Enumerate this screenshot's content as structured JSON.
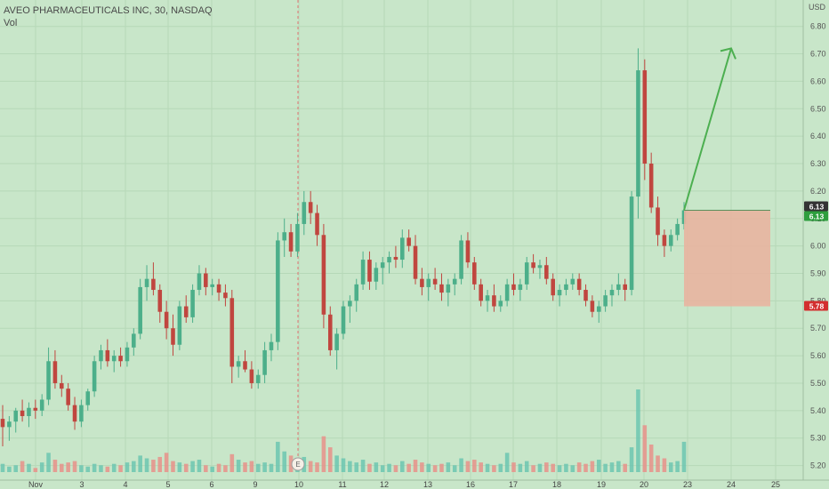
{
  "header": {
    "title": "AVEO PHARMACEUTICALS INC, 30, NASDAQ",
    "volume_label": "Vol"
  },
  "colors": {
    "background": "#c8e6c9",
    "up": "#4caf8a",
    "down": "#c0463f",
    "volume_up": "#6cc5b0",
    "volume_down": "#e8908a",
    "arrow": "#4caf50",
    "stop_zone": "#e8b4a0",
    "grid": "#b6d8b8",
    "event_line": "#e57373"
  },
  "chart_data": {
    "type": "candlestick",
    "y_axis": {
      "unit": "USD",
      "ticks": [
        "6.80",
        "6.70",
        "6.60",
        "6.50",
        "6.40",
        "6.30",
        "6.20",
        "6.10",
        "6.00",
        "5.90",
        "5.80",
        "5.70",
        "5.60",
        "5.50",
        "5.40",
        "5.30",
        "5.20"
      ],
      "range": [
        5.15,
        6.88
      ]
    },
    "x_axis": {
      "ticks": [
        "Nov",
        "3",
        "4",
        "5",
        "6",
        "9",
        "10",
        "11",
        "12",
        "13",
        "16",
        "17",
        "18",
        "19",
        "20",
        "23",
        "24",
        "25"
      ]
    },
    "price_labels": [
      {
        "value": "6.13",
        "color": "#333333"
      },
      {
        "value": "6.13",
        "color": "#2e9e3e"
      },
      {
        "value": "5.78",
        "color": "#d32f2f"
      }
    ],
    "event_marker": {
      "label": "E",
      "x_tick": "10"
    },
    "trade_setup": {
      "entry": 6.13,
      "stop": 5.78,
      "target_arrow_to": 6.72
    },
    "ohlc_series": [
      [
        5.37,
        5.42,
        5.27,
        5.34
      ],
      [
        5.34,
        5.38,
        5.29,
        5.36
      ],
      [
        5.36,
        5.41,
        5.32,
        5.4
      ],
      [
        5.4,
        5.44,
        5.36,
        5.38
      ],
      [
        5.38,
        5.43,
        5.34,
        5.41
      ],
      [
        5.41,
        5.44,
        5.37,
        5.4
      ],
      [
        5.4,
        5.46,
        5.38,
        5.44
      ],
      [
        5.44,
        5.63,
        5.42,
        5.58
      ],
      [
        5.58,
        5.62,
        5.48,
        5.5
      ],
      [
        5.5,
        5.53,
        5.45,
        5.48
      ],
      [
        5.48,
        5.5,
        5.4,
        5.42
      ],
      [
        5.42,
        5.45,
        5.33,
        5.36
      ],
      [
        5.36,
        5.44,
        5.34,
        5.42
      ],
      [
        5.42,
        5.48,
        5.4,
        5.47
      ],
      [
        5.47,
        5.6,
        5.45,
        5.58
      ],
      [
        5.58,
        5.64,
        5.55,
        5.62
      ],
      [
        5.62,
        5.66,
        5.56,
        5.58
      ],
      [
        5.58,
        5.62,
        5.54,
        5.6
      ],
      [
        5.6,
        5.63,
        5.56,
        5.58
      ],
      [
        5.58,
        5.65,
        5.56,
        5.63
      ],
      [
        5.63,
        5.7,
        5.6,
        5.68
      ],
      [
        5.68,
        5.88,
        5.66,
        5.85
      ],
      [
        5.85,
        5.93,
        5.8,
        5.88
      ],
      [
        5.88,
        5.94,
        5.82,
        5.84
      ],
      [
        5.84,
        5.86,
        5.72,
        5.76
      ],
      [
        5.76,
        5.8,
        5.66,
        5.7
      ],
      [
        5.7,
        5.75,
        5.6,
        5.64
      ],
      [
        5.64,
        5.8,
        5.62,
        5.78
      ],
      [
        5.78,
        5.82,
        5.72,
        5.74
      ],
      [
        5.74,
        5.86,
        5.72,
        5.84
      ],
      [
        5.84,
        5.93,
        5.82,
        5.9
      ],
      [
        5.9,
        5.92,
        5.82,
        5.85
      ],
      [
        5.85,
        5.88,
        5.82,
        5.86
      ],
      [
        5.86,
        5.88,
        5.8,
        5.83
      ],
      [
        5.83,
        5.86,
        5.78,
        5.81
      ],
      [
        5.81,
        5.84,
        5.5,
        5.56
      ],
      [
        5.56,
        5.6,
        5.52,
        5.58
      ],
      [
        5.58,
        5.62,
        5.54,
        5.55
      ],
      [
        5.55,
        5.58,
        5.48,
        5.5
      ],
      [
        5.5,
        5.55,
        5.48,
        5.53
      ],
      [
        5.53,
        5.65,
        5.5,
        5.62
      ],
      [
        5.62,
        5.68,
        5.58,
        5.65
      ],
      [
        5.65,
        6.05,
        5.62,
        6.02
      ],
      [
        6.02,
        6.1,
        5.96,
        6.05
      ],
      [
        6.05,
        6.08,
        5.96,
        5.98
      ],
      [
        5.98,
        6.12,
        5.96,
        6.08
      ],
      [
        6.08,
        6.2,
        6.04,
        6.16
      ],
      [
        6.16,
        6.2,
        6.08,
        6.12
      ],
      [
        6.12,
        6.15,
        6.0,
        6.04
      ],
      [
        6.04,
        6.08,
        5.7,
        5.75
      ],
      [
        5.75,
        5.78,
        5.6,
        5.62
      ],
      [
        5.62,
        5.7,
        5.55,
        5.68
      ],
      [
        5.68,
        5.8,
        5.66,
        5.78
      ],
      [
        5.78,
        5.82,
        5.72,
        5.8
      ],
      [
        5.8,
        5.88,
        5.76,
        5.86
      ],
      [
        5.86,
        5.98,
        5.84,
        5.95
      ],
      [
        5.95,
        5.98,
        5.84,
        5.87
      ],
      [
        5.87,
        5.94,
        5.84,
        5.92
      ],
      [
        5.92,
        5.96,
        5.86,
        5.94
      ],
      [
        5.94,
        5.98,
        5.9,
        5.96
      ],
      [
        5.96,
        6.0,
        5.92,
        5.95
      ],
      [
        5.95,
        6.06,
        5.92,
        6.03
      ],
      [
        6.03,
        6.06,
        5.98,
        6.0
      ],
      [
        6.0,
        6.04,
        5.86,
        5.88
      ],
      [
        5.88,
        5.92,
        5.82,
        5.85
      ],
      [
        5.85,
        5.9,
        5.8,
        5.88
      ],
      [
        5.88,
        5.92,
        5.84,
        5.86
      ],
      [
        5.86,
        5.9,
        5.8,
        5.83
      ],
      [
        5.83,
        5.88,
        5.78,
        5.86
      ],
      [
        5.86,
        5.9,
        5.82,
        5.88
      ],
      [
        5.88,
        6.04,
        5.86,
        6.02
      ],
      [
        6.02,
        6.05,
        5.92,
        5.94
      ],
      [
        5.94,
        5.96,
        5.84,
        5.86
      ],
      [
        5.86,
        5.88,
        5.78,
        5.8
      ],
      [
        5.8,
        5.84,
        5.76,
        5.82
      ],
      [
        5.82,
        5.86,
        5.76,
        5.78
      ],
      [
        5.78,
        5.82,
        5.76,
        5.8
      ],
      [
        5.8,
        5.88,
        5.78,
        5.86
      ],
      [
        5.86,
        5.9,
        5.82,
        5.84
      ],
      [
        5.84,
        5.88,
        5.8,
        5.86
      ],
      [
        5.86,
        5.96,
        5.84,
        5.94
      ],
      [
        5.94,
        5.97,
        5.9,
        5.92
      ],
      [
        5.92,
        5.95,
        5.88,
        5.93
      ],
      [
        5.93,
        5.96,
        5.86,
        5.88
      ],
      [
        5.88,
        5.9,
        5.8,
        5.82
      ],
      [
        5.82,
        5.86,
        5.78,
        5.84
      ],
      [
        5.84,
        5.88,
        5.82,
        5.86
      ],
      [
        5.86,
        5.9,
        5.84,
        5.88
      ],
      [
        5.88,
        5.9,
        5.82,
        5.84
      ],
      [
        5.84,
        5.86,
        5.78,
        5.8
      ],
      [
        5.8,
        5.82,
        5.74,
        5.76
      ],
      [
        5.76,
        5.8,
        5.72,
        5.78
      ],
      [
        5.78,
        5.84,
        5.76,
        5.82
      ],
      [
        5.82,
        5.86,
        5.78,
        5.84
      ],
      [
        5.84,
        5.9,
        5.82,
        5.86
      ],
      [
        5.86,
        5.88,
        5.8,
        5.84
      ],
      [
        5.84,
        6.2,
        5.82,
        6.18
      ],
      [
        6.18,
        6.72,
        6.1,
        6.64
      ],
      [
        6.64,
        6.68,
        6.24,
        6.3
      ],
      [
        6.3,
        6.34,
        6.12,
        6.14
      ],
      [
        6.14,
        6.18,
        6.0,
        6.04
      ],
      [
        6.04,
        6.06,
        5.96,
        6.0
      ],
      [
        6.0,
        6.06,
        5.98,
        6.04
      ],
      [
        6.04,
        6.1,
        6.02,
        6.08
      ],
      [
        6.08,
        6.16,
        6.06,
        6.13
      ]
    ],
    "volume": [
      [
        6,
        1
      ],
      [
        4,
        1
      ],
      [
        5,
        1
      ],
      [
        8,
        0
      ],
      [
        6,
        1
      ],
      [
        3,
        0
      ],
      [
        7,
        1
      ],
      [
        14,
        1
      ],
      [
        9,
        0
      ],
      [
        6,
        0
      ],
      [
        7,
        0
      ],
      [
        8,
        0
      ],
      [
        5,
        1
      ],
      [
        4,
        1
      ],
      [
        6,
        1
      ],
      [
        5,
        1
      ],
      [
        4,
        0
      ],
      [
        6,
        1
      ],
      [
        5,
        0
      ],
      [
        7,
        1
      ],
      [
        8,
        1
      ],
      [
        12,
        1
      ],
      [
        10,
        1
      ],
      [
        9,
        0
      ],
      [
        11,
        0
      ],
      [
        14,
        0
      ],
      [
        8,
        0
      ],
      [
        7,
        1
      ],
      [
        6,
        0
      ],
      [
        8,
        1
      ],
      [
        9,
        1
      ],
      [
        5,
        0
      ],
      [
        4,
        1
      ],
      [
        6,
        0
      ],
      [
        5,
        0
      ],
      [
        13,
        0
      ],
      [
        9,
        1
      ],
      [
        7,
        0
      ],
      [
        8,
        0
      ],
      [
        6,
        1
      ],
      [
        7,
        1
      ],
      [
        6,
        1
      ],
      [
        22,
        1
      ],
      [
        15,
        1
      ],
      [
        12,
        0
      ],
      [
        10,
        1
      ],
      [
        11,
        1
      ],
      [
        8,
        0
      ],
      [
        7,
        0
      ],
      [
        26,
        0
      ],
      [
        18,
        0
      ],
      [
        12,
        1
      ],
      [
        10,
        1
      ],
      [
        8,
        1
      ],
      [
        7,
        1
      ],
      [
        9,
        1
      ],
      [
        6,
        0
      ],
      [
        7,
        1
      ],
      [
        5,
        1
      ],
      [
        6,
        1
      ],
      [
        5,
        0
      ],
      [
        8,
        1
      ],
      [
        6,
        0
      ],
      [
        9,
        0
      ],
      [
        7,
        0
      ],
      [
        6,
        1
      ],
      [
        5,
        0
      ],
      [
        6,
        0
      ],
      [
        7,
        1
      ],
      [
        5,
        1
      ],
      [
        10,
        1
      ],
      [
        8,
        0
      ],
      [
        9,
        0
      ],
      [
        7,
        0
      ],
      [
        6,
        1
      ],
      [
        5,
        0
      ],
      [
        6,
        1
      ],
      [
        14,
        1
      ],
      [
        7,
        0
      ],
      [
        6,
        1
      ],
      [
        8,
        1
      ],
      [
        5,
        0
      ],
      [
        6,
        1
      ],
      [
        7,
        0
      ],
      [
        6,
        0
      ],
      [
        5,
        1
      ],
      [
        6,
        1
      ],
      [
        5,
        1
      ],
      [
        7,
        0
      ],
      [
        6,
        0
      ],
      [
        8,
        0
      ],
      [
        9,
        1
      ],
      [
        6,
        1
      ],
      [
        7,
        1
      ],
      [
        8,
        1
      ],
      [
        6,
        0
      ],
      [
        18,
        1
      ],
      [
        60,
        1
      ],
      [
        34,
        0
      ],
      [
        20,
        0
      ],
      [
        12,
        0
      ],
      [
        10,
        0
      ],
      [
        7,
        1
      ],
      [
        8,
        1
      ],
      [
        22,
        1
      ]
    ]
  }
}
